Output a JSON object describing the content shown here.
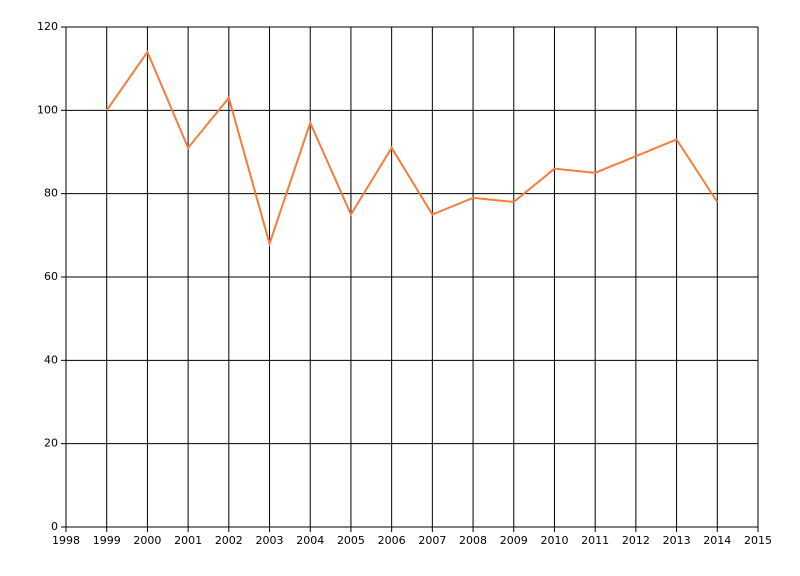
{
  "chart_data": {
    "type": "line",
    "x": [
      1999,
      2000,
      2001,
      2002,
      2003,
      2004,
      2005,
      2006,
      2007,
      2008,
      2009,
      2010,
      2011,
      2012,
      2013,
      2014
    ],
    "series": [
      {
        "color": "#f47d3c",
        "values": [
          100,
          114,
          91,
          103,
          68,
          97,
          75,
          91,
          75,
          79,
          78,
          86,
          85,
          89,
          93,
          78
        ]
      }
    ],
    "xlim": [
      1998,
      2015
    ],
    "xticks": [
      1998,
      1999,
      2000,
      2001,
      2002,
      2003,
      2004,
      2005,
      2006,
      2007,
      2008,
      2009,
      2010,
      2011,
      2012,
      2013,
      2014,
      2015
    ],
    "ylim": [
      0,
      120
    ],
    "yticks": [
      0,
      20,
      40,
      60,
      80,
      100,
      120
    ],
    "grid": true
  }
}
